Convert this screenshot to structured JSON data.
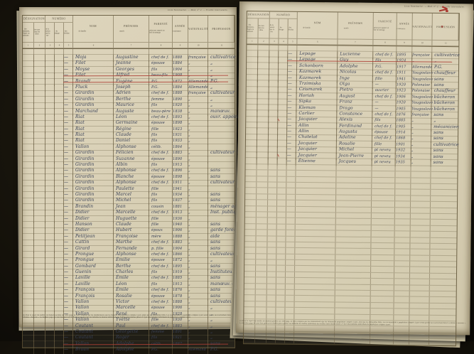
{
  "document_title": "Liste nominative de recensement — registre manuscrit, double page",
  "colors": {
    "paper": "#d8cfb4",
    "ink": "#3a4258",
    "red_strike": "#ab3e34",
    "print": "#5b5444",
    "background": "#14110a"
  },
  "columns": {
    "group_designation": "DÉSIGNATION",
    "sub_designation": [
      "des communes, villages ou hameaux",
      "des rues dans les villes"
    ],
    "group_numero": "NUMÉRO",
    "sub_numero": [
      "de la maison dans la rue",
      "du ménage",
      "des individus"
    ],
    "nom": {
      "title": "NOM",
      "sub": "de famille"
    },
    "prenoms": {
      "title": "PRÉNOMS",
      "sub": "usuels"
    },
    "parente": {
      "title": "PARENTÉ",
      "sub": "ou situation par rapport au chef de ménage"
    },
    "annee": {
      "title": "ANNÉE",
      "sub": "de naissance"
    },
    "nationalite": {
      "title": "NATIONALITÉ",
      "sub": ""
    },
    "profession": {
      "title": "PROFESSION",
      "sub": ""
    },
    "numbers": [
      "1",
      "2",
      "3",
      "4",
      "5",
      "6",
      "7",
      "8",
      "9",
      "10",
      "11"
    ]
  },
  "pages": [
    {
      "side": "left",
      "caption": "Liste Nominative. — Mod. n° 2. — Feuille intercalaire.",
      "struck_rows": [
        5,
        6,
        50
      ],
      "red_ticks": [],
      "empty_rows": 0,
      "rows": [
        [
          "Moja",
          "Augustine",
          "chef de f.",
          "1888",
          "française",
          "cultivatrice"
        ],
        [
          "Filet",
          "Jeanne",
          "épouse",
          "1884",
          "„",
          "„"
        ],
        [
          "Moyse",
          "Georges",
          "fils",
          "1904",
          "„",
          "„"
        ],
        [
          "Filet",
          "Alfred",
          "beau-fils",
          "1908",
          "„",
          "„"
        ],
        [
          "Brandt",
          "Eugène",
          "P.G.",
          "1872",
          "Allemande",
          "P.G."
        ],
        [
          "Fluck",
          "Joseph",
          "P.G.",
          "1884",
          "Allemande",
          "„"
        ],
        [
          "Girardin",
          "Adrien",
          "chef de f.",
          "1888",
          "française",
          "cultivateur"
        ],
        [
          "Girardin",
          "Berthe",
          "femme",
          "1890",
          "„",
          "„"
        ],
        [
          "Girardin",
          "Maurice",
          "fils",
          "1920",
          "„",
          "„"
        ],
        [
          "Marchand",
          "Auguste",
          "beau-père",
          "1838",
          "„",
          "manœuv."
        ],
        [
          "Riat",
          "Léon",
          "chef de f.",
          "1893",
          "„",
          "ouvr. appointé"
        ],
        [
          "Riat",
          "Germaine",
          "épouse",
          "1898",
          "„",
          ""
        ],
        [
          "Riat",
          "Régine",
          "fille",
          "1923",
          "„",
          ""
        ],
        [
          "Riat",
          "Claude",
          "fils",
          "1931",
          "„",
          ""
        ],
        [
          "Riat",
          "Daniel",
          "fils",
          "1933",
          "„",
          ""
        ],
        [
          "Vallon",
          "Alphonse",
          "célib.",
          "1864",
          "„",
          ""
        ],
        [
          "Girardin",
          "Félicien",
          "chef de f.",
          "1883",
          "„",
          "cultivateur"
        ],
        [
          "Girardin",
          "Suzanne",
          "épouse",
          "1890",
          "„",
          ""
        ],
        [
          "Girardin",
          "Albin",
          "fils",
          "1913",
          "„",
          ""
        ],
        [
          "Girardin",
          "Alphonse",
          "chef de f.",
          "1896",
          "„",
          "sans"
        ],
        [
          "Girardin",
          "Blanche",
          "épouse",
          "1898",
          "„",
          "sans"
        ],
        [
          "Girardin",
          "Alphonse",
          "chef de f.",
          "1911",
          "„",
          "cultivateur"
        ],
        [
          "Girardin",
          "Paulette",
          "fille",
          "1941",
          "„",
          ""
        ],
        [
          "Girardin",
          "Marcel",
          "fils",
          "1934",
          "„",
          "sans"
        ],
        [
          "Girardin",
          "Michel",
          "fils",
          "1937",
          "„",
          "sans"
        ],
        [
          "Brandin",
          "Jean",
          "cousin",
          "1881",
          "„",
          "ménager agric."
        ],
        [
          "Didier",
          "Marcelle",
          "chef de f.",
          "1913",
          "„",
          "Inst. publique"
        ],
        [
          "Didier",
          "Huguette",
          "fille",
          "1936",
          "„",
          ""
        ],
        [
          "Hanson",
          "Claude",
          "fille",
          "1940",
          "„",
          "sans"
        ],
        [
          "Didier",
          "Hubert",
          "époux",
          "1906",
          "„",
          "garde forest."
        ],
        [
          "Petitjean",
          "Françoise",
          "mère",
          "1888",
          "„",
          "aide"
        ],
        [
          "Cattin",
          "Marthe",
          "chef de f.",
          "1883",
          "„",
          "sans"
        ],
        [
          "Girard",
          "Fernande",
          "p. fille",
          "1904",
          "„",
          "sans"
        ],
        [
          "Prongue",
          "Alphonse",
          "chef de f.",
          "1866",
          "„",
          "cultivateur"
        ],
        [
          "Prongue",
          "Émilie",
          "épouse",
          "1872",
          "„",
          "„"
        ],
        [
          "Gombard",
          "Berthe",
          "chef de f.",
          "1895",
          "„",
          "sans"
        ],
        [
          "Guenin",
          "Charles",
          "fils",
          "1919",
          "„",
          "Instituteur"
        ],
        [
          "Laville",
          "Émile",
          "chef de f.",
          "1885",
          "„",
          "sans"
        ],
        [
          "Laville",
          "Léon",
          "fils",
          "1913",
          "„",
          "manœuv. d'usine"
        ],
        [
          "François",
          "Émile",
          "chef de f.",
          "1876",
          "„",
          "sans"
        ],
        [
          "François",
          "Rosalie",
          "épouse",
          "1878",
          "„",
          "sans"
        ],
        [
          "Vallon",
          "Victor",
          "chef de f.",
          "1888",
          "„",
          "cultivateur"
        ],
        [
          "Vallon",
          "Marcelle",
          "épouse",
          "1906",
          "„",
          "„"
        ],
        [
          "Vallon",
          "René",
          "fils",
          "1928",
          "„",
          "„"
        ],
        [
          "Vallon",
          "Yvette",
          "fille",
          "1930",
          "„",
          "„"
        ],
        [
          "Coutant",
          "Paul",
          "chef de f.",
          "1883",
          "„",
          "„"
        ],
        [
          "Coutant",
          "Georgette",
          "femme",
          "1891",
          "„",
          "„"
        ],
        [
          "Coutant",
          "Roger",
          "fils",
          "1921",
          "„",
          "„"
        ],
        [
          "Vallon",
          "Adolphe",
          "célib.",
          "1887",
          "„",
          "sans"
        ],
        [
          "Braun",
          "Adolphe",
          "P.G.",
          "",
          "Allemand",
          "P.G."
        ]
      ],
      "footnote": "(1) Pour le report du nombre de maisons portées sur cette page, ne sont comptées par les énumérateurs que les maisons de population comptée à part, ainsi que les immeubles bâtis. Les recensements à population comptée à part seront portés successivement dans la colonne « maisons ». La dernière page de cette liste peut servir d'ordre pour reporter les bulletins de maison individuels des feuilles intercalaires (mod. n° 2) et des bulletins individuels de population comptée à part."
    },
    {
      "side": "right",
      "caption": "Liste Nominative. — Mod. n° 2. — Feuille intercalaire.",
      "struck_rows": [
        3
      ],
      "red_ticks": [
        13,
        19
      ],
      "empty_rows": 31,
      "rows": [
        [
          "Lepage",
          "Lucienne",
          "chef de f.",
          "1895",
          "française",
          "cultivatrice"
        ],
        [
          "Lepage",
          "Guy",
          "fils",
          "1924",
          "„",
          "„"
        ],
        [
          "Schonborn",
          "Adolphe",
          "P.G.",
          "1917",
          "Allemande",
          "P.G."
        ],
        [
          "Kazmarek",
          "Nicolas",
          "chef de f.",
          "1911",
          "Yougoslave",
          "chauffeur"
        ],
        [
          "Kazmarek",
          "Inge",
          "fille",
          "1941",
          "Yougoslave",
          "sans"
        ],
        [
          "Trzimiska",
          "Olga",
          "—",
          "1920",
          "Polonaise",
          "sans"
        ],
        [
          "Czismarek",
          "Pietro",
          "ouvrier",
          "1923",
          "Polonaise",
          "chauffeur"
        ],
        [
          "Horiah",
          "August",
          "chef de f.",
          "1906",
          "Yougoslave",
          "bûcheron"
        ],
        [
          "Sipka",
          "Franz",
          "—",
          "1920",
          "Yougoslave",
          "bûcheron"
        ],
        [
          "Kleman",
          "Drago",
          "—",
          "1905",
          "Yougoslave",
          "bûcheron"
        ],
        [
          "Carlier",
          "Constance",
          "chef de f.",
          "1876",
          "française",
          "sans"
        ],
        [
          "Jacquier",
          "Alexis",
          "fils",
          "1885",
          "„",
          "„"
        ],
        [
          "Allin",
          "Ferdinand",
          "chef de f.",
          "1905",
          "„",
          "mécanicien"
        ],
        [
          "Allin",
          "Augusta",
          "épouse",
          "1914",
          "„",
          "sans"
        ],
        [
          "Chatelat",
          "Adeline",
          "chef de f.",
          "1868",
          "„",
          "sans"
        ],
        [
          "Jacquier",
          "Rosalie",
          "fille",
          "1901",
          "„",
          "cultivatrice"
        ],
        [
          "Jacquier",
          "Michel",
          "pt neveu",
          "1932",
          "„",
          "sans"
        ],
        [
          "Jacquier",
          "Jean-Pierre",
          "pt neveu",
          "1934",
          "„",
          "sans"
        ],
        [
          "Étienne",
          "Jacques",
          "pt neveu",
          "1935",
          "„",
          "sans"
        ]
      ],
      "footnote": "(1) Pour le report du nombre de maisons portées sur cette page, ne sont comptées par les énumérateurs que les maisons de population comptée à part, ainsi que les immeubles bâtis. Les recensements à population comptée à part seront portés successivement dans la colonne « maisons ». La dernière page de cette liste peut servir d'ordre pour reporter les bulletins de maison individuels des feuilles intercalaires (mod. n° 2) et des bulletins individuels de population comptée à part."
    }
  ]
}
